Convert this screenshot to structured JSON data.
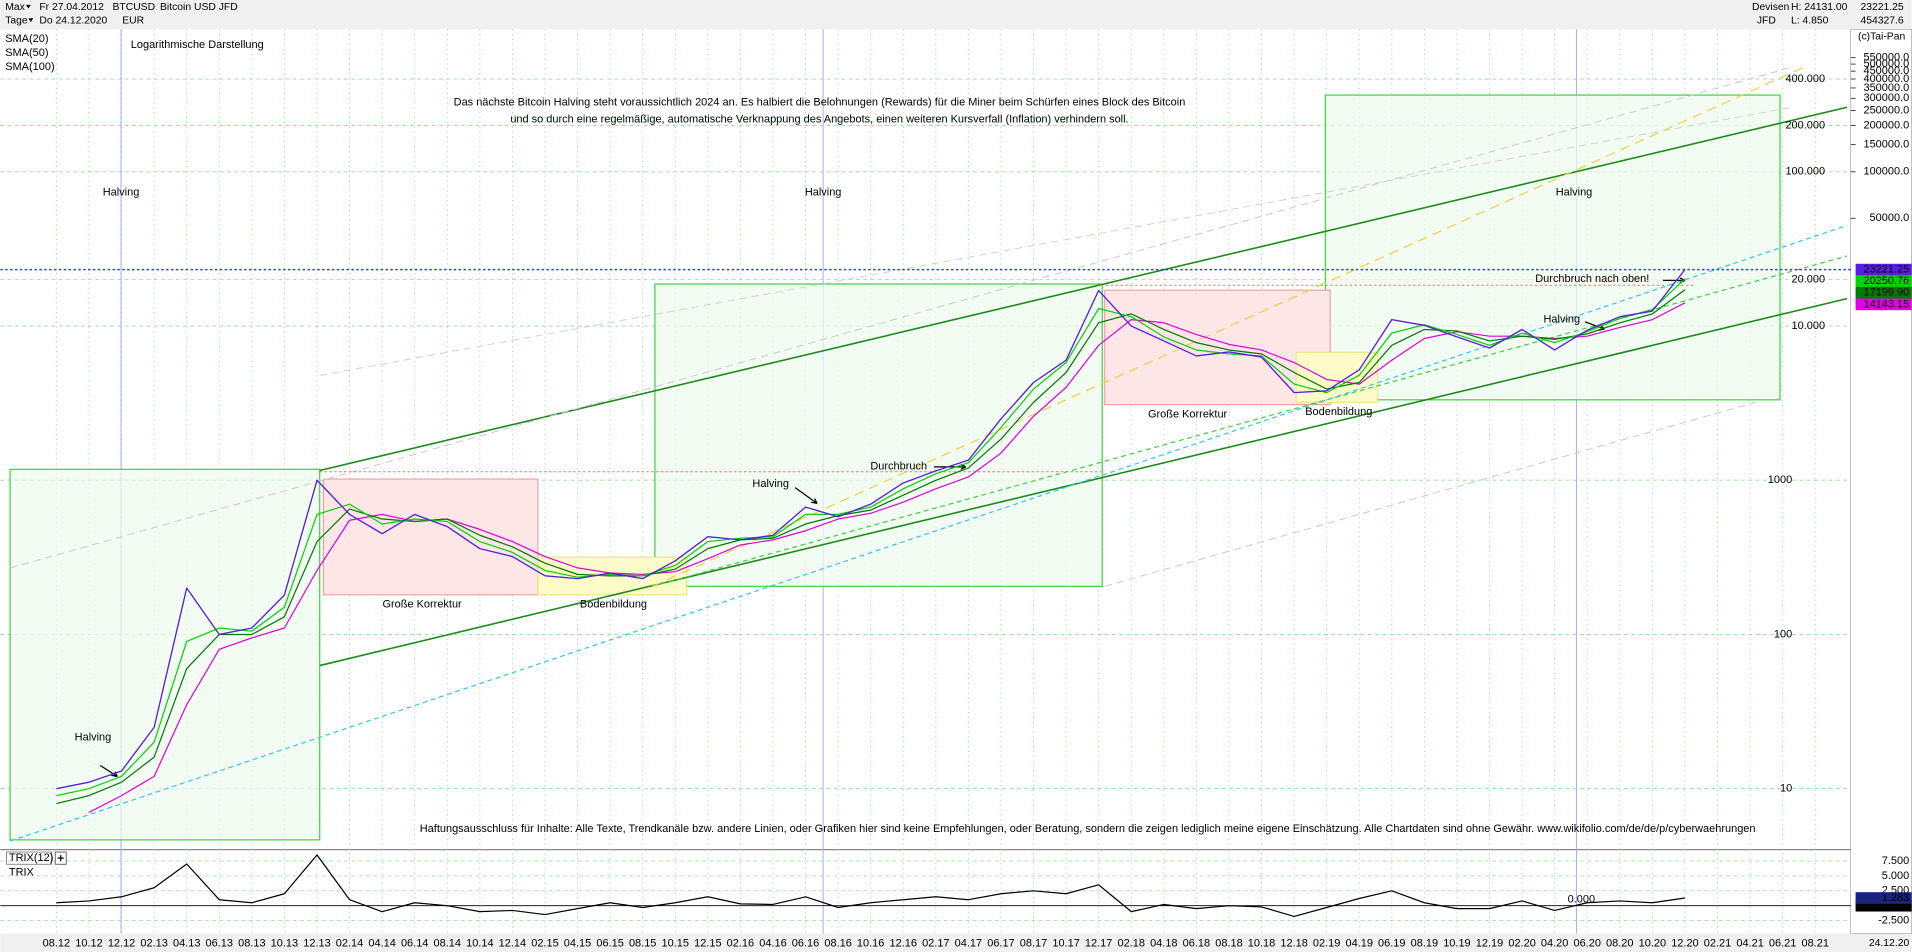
{
  "toolbar": {
    "range": "Max",
    "interval": "Tage",
    "from": "Fr 27.04.2012",
    "to": "Do 24.12.2020",
    "symbol": "BTCUSD",
    "currency": "EUR",
    "instrument": "Bitcoin USD JFD",
    "market": "Devisen",
    "broker": "JFD",
    "high": "H: 24131.00",
    "low": "L: 4.850",
    "last": "23221.25",
    "volume": "454327.6",
    "copyright": "(c)Tai-Pan",
    "date_end": "24.12.20"
  },
  "chart_data": [
    {
      "type": "line",
      "watermark": "Logarithmische Darstellung",
      "log_scale": true,
      "grid": true,
      "categories": [
        "08.12",
        "10.12",
        "12.12",
        "02.13",
        "04.13",
        "06.13",
        "08.13",
        "10.13",
        "12.13",
        "02.14",
        "04.14",
        "06.14",
        "08.14",
        "10.14",
        "12.14",
        "02.15",
        "04.15",
        "06.15",
        "08.15",
        "10.15",
        "12.15",
        "02.16",
        "04.16",
        "06.16",
        "08.16",
        "10.16",
        "12.16",
        "02.17",
        "04.17",
        "06.17",
        "08.17",
        "10.17",
        "12.17",
        "02.18",
        "04.18",
        "06.18",
        "08.18",
        "10.18",
        "12.18",
        "02.19",
        "04.19",
        "06.19",
        "08.19",
        "10.19",
        "12.19",
        "02.20",
        "04.20",
        "06.20",
        "08.20",
        "10.20",
        "12.20",
        "02.21",
        "04.21",
        "06.21",
        "08.21"
      ],
      "series": [
        {
          "name": "Bitcoin USD JFD",
          "color": "#5a1ee0",
          "values": [
            10,
            11,
            13,
            25,
            200,
            100,
            110,
            180,
            1000,
            600,
            450,
            600,
            500,
            360,
            320,
            240,
            230,
            250,
            230,
            300,
            430,
            410,
            440,
            670,
            580,
            700,
            960,
            1150,
            1350,
            2500,
            4300,
            6000,
            17000,
            10000,
            8000,
            6400,
            6800,
            6300,
            3700,
            3800,
            5200,
            11000,
            10100,
            8500,
            7200,
            9500,
            7000,
            9400,
            11500,
            12500,
            23221.25,
            null,
            null,
            null,
            null
          ]
        },
        {
          "name": "SMA(20)",
          "color": "#00d400",
          "values": [
            9,
            10,
            12,
            20,
            90,
            110,
            105,
            150,
            600,
            700,
            520,
            560,
            540,
            400,
            340,
            260,
            235,
            245,
            240,
            280,
            400,
            420,
            430,
            600,
            600,
            670,
            880,
            1100,
            1300,
            2200,
            3900,
            5800,
            13000,
            11500,
            8500,
            7000,
            6600,
            6400,
            4200,
            3700,
            4800,
            9000,
            10200,
            8800,
            7500,
            9000,
            7800,
            9200,
            11200,
            12800,
            20250.76,
            null,
            null,
            null,
            null
          ]
        },
        {
          "name": "SMA(50)",
          "color": "#007a00",
          "values": [
            8,
            9,
            11,
            16,
            60,
            100,
            100,
            130,
            400,
            650,
            560,
            540,
            560,
            440,
            370,
            290,
            245,
            240,
            240,
            265,
            360,
            410,
            420,
            520,
            590,
            640,
            800,
            1000,
            1200,
            1850,
            3200,
            5000,
            10500,
            12000,
            9500,
            7800,
            7000,
            6600,
            5000,
            3900,
            4300,
            7500,
            9500,
            9300,
            8000,
            8600,
            8200,
            8900,
            10500,
            12000,
            17199.9,
            null,
            null,
            null,
            null
          ],
          "value_labels": [
            null,
            null,
            null,
            null,
            null,
            null,
            null,
            null,
            null,
            null,
            null,
            null,
            null,
            null,
            null,
            null,
            null,
            null,
            null,
            null,
            null,
            null,
            null,
            null,
            null,
            null,
            null,
            null,
            null,
            null,
            null,
            null,
            null,
            null,
            null,
            null,
            null,
            null,
            null,
            null,
            null,
            null,
            null,
            null,
            null,
            null,
            null,
            null,
            null,
            null,
            "17199.90",
            null,
            null,
            null,
            null
          ]
        },
        {
          "name": "SMA(100)",
          "color": "#e000e0",
          "values": [
            null,
            7,
            9,
            12,
            35,
            80,
            95,
            110,
            260,
            550,
            600,
            540,
            560,
            480,
            400,
            320,
            270,
            250,
            245,
            255,
            310,
            380,
            410,
            470,
            560,
            610,
            720,
            880,
            1050,
            1500,
            2600,
            4000,
            7500,
            11000,
            10500,
            8800,
            7600,
            7000,
            5800,
            4500,
            4200,
            6000,
            8300,
            9200,
            8600,
            8600,
            8300,
            8600,
            9800,
            11000,
            14143.15,
            null,
            null,
            null,
            null
          ]
        }
      ],
      "ylim": [
        4.17,
        841000
      ],
      "yticks": [
        10,
        100,
        1000,
        {
          "value": 10000,
          "label": "10.000"
        },
        {
          "value": 20000,
          "label": "20.000"
        },
        {
          "value": 100000,
          "label": "100.000"
        },
        {
          "value": 200000,
          "label": "200.000"
        },
        {
          "value": 400000,
          "label": "400.000"
        }
      ],
      "yticks_right": [
        {
          "value": 50000,
          "label": "50000.0"
        },
        {
          "value": 100000,
          "label": "100000.0"
        },
        {
          "value": 150000,
          "label": "150000.0"
        },
        {
          "value": 200000,
          "label": "200000.0"
        },
        {
          "value": 250000,
          "label": "250000.0"
        },
        {
          "value": 300000,
          "label": "300000.0"
        },
        {
          "value": 350000,
          "label": "350000.0"
        },
        {
          "value": 400000,
          "label": "400000.0"
        },
        {
          "value": 450000,
          "label": "450000.0"
        },
        {
          "value": 500000,
          "label": "500000.0"
        },
        {
          "value": 550000,
          "label": "550000.0"
        }
      ],
      "annotations": [
        "Das nächste Bitcoin Halving steht voraussichtlich 2024 an. Es halbiert die Belohnungen (Rewards) für die Miner beim Schürfen eines Block des Bitcoin",
        "und so durch eine regelmäßige, automatische Verknappung des Angebots, einen weiteren Kursverfall (Inflation) verhindern soll.",
        "Halving",
        "Halving",
        "Halving",
        "Halving",
        "Halving",
        "Halving",
        "Große Korrektur",
        "Große Korrektur",
        "Bodenbildung",
        "Bodenbildung",
        "Durchbruch",
        "Durchbruch nach oben!",
        "Haftungsausschluss für Inhalte: Alle Texte, Trendkanäle bzw. andere Linien, oder Grafiken hier sind keine Empfehlungen, oder Beratung, sondern die zeigen lediglich meine eigene Einschätzung. Alle Chartdaten sind ohne Gewähr.  www.wikifolio.com/de/de/p/cyberwaehrungen"
      ]
    },
    {
      "type": "line",
      "title": "TRIX(12)",
      "series": [
        {
          "name": "TRIX",
          "color": "#000000",
          "values": [
            0.5,
            0.8,
            1.5,
            3,
            7,
            1,
            0.5,
            2,
            8.5,
            1,
            -1,
            0.5,
            0,
            -1,
            -0.8,
            -1.5,
            -0.5,
            0.5,
            -0.3,
            0.5,
            1.5,
            0.3,
            0.2,
            1.5,
            -0.3,
            0.5,
            1,
            1.5,
            1,
            2,
            2.5,
            2,
            3.5,
            -1,
            0.2,
            -0.5,
            0,
            -0.2,
            -1.8,
            -0.3,
            1.2,
            2.5,
            0.5,
            -0.5,
            -0.5,
            0.8,
            -0.8,
            0.5,
            0.8,
            0.5,
            1.283,
            null,
            null,
            null,
            null
          ]
        }
      ],
      "ylim": [
        -4.5,
        9
      ],
      "yticks": [
        {
          "value": 7.5,
          "label": "7.500"
        },
        {
          "value": 5,
          "label": "5.000"
        },
        {
          "value": 2.5,
          "label": "2.500"
        },
        {
          "value": 0,
          "label": "0.000"
        },
        {
          "value": -2.5,
          "label": "-2.500"
        }
      ]
    }
  ]
}
